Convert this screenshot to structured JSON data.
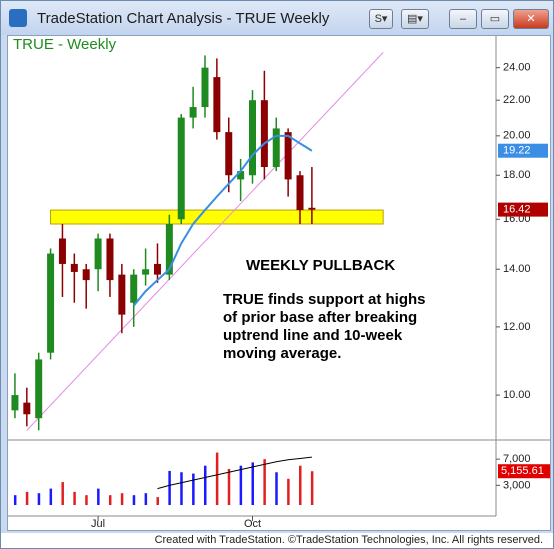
{
  "window": {
    "title": "TradeStation Chart Analysis - TRUE Weekly",
    "status": "Created with TradeStation. ©TradeStation Technologies, Inc. All rights reserved."
  },
  "chart_data": {
    "type": "candlestick",
    "title": "TRUE - Weekly",
    "categories": [
      null,
      null,
      null,
      null,
      null,
      null,
      null,
      "Jul",
      null,
      null,
      null,
      null,
      null,
      null,
      null,
      null,
      null,
      null,
      null,
      null,
      "Oct",
      null,
      null,
      null,
      null,
      null
    ],
    "open": [
      9.6,
      9.8,
      9.4,
      11.2,
      15.2,
      14.2,
      14.0,
      14.0,
      15.2,
      13.8,
      12.8,
      13.8,
      14.2,
      13.8,
      16.0,
      21.0,
      21.6,
      23.4,
      20.2,
      17.8,
      18.0,
      22.0,
      18.4,
      20.2,
      18.0,
      16.5
    ],
    "high": [
      10.6,
      10.2,
      11.2,
      14.8,
      15.8,
      14.6,
      14.2,
      15.4,
      15.4,
      14.2,
      14.0,
      14.8,
      15.0,
      16.2,
      21.2,
      22.8,
      24.8,
      24.6,
      21.0,
      18.8,
      22.6,
      23.8,
      21.0,
      20.4,
      18.2,
      18.4
    ],
    "low": [
      9.4,
      9.2,
      9.1,
      11.0,
      13.0,
      12.8,
      12.6,
      13.2,
      13.0,
      11.8,
      12.0,
      13.4,
      13.5,
      13.6,
      15.8,
      20.4,
      21.0,
      19.8,
      17.2,
      16.8,
      17.6,
      17.8,
      18.2,
      17.0,
      15.8,
      15.8
    ],
    "close": [
      10.0,
      9.5,
      11.0,
      14.6,
      14.2,
      13.9,
      13.6,
      15.2,
      13.6,
      12.4,
      13.8,
      14.0,
      13.8,
      15.8,
      21.0,
      21.6,
      24.0,
      20.2,
      18.0,
      18.2,
      22.0,
      18.4,
      20.4,
      17.8,
      16.4,
      16.42
    ],
    "up_color": "#1f8a1f",
    "down_color": "#8b0000",
    "ylim": [
      9.06,
      26.4
    ],
    "log_scale": true,
    "yticks": [
      {
        "value": 10,
        "label": "10.00"
      },
      {
        "value": 12,
        "label": "12.00"
      },
      {
        "value": 14,
        "label": "14.00"
      },
      {
        "value": 16,
        "label": "16.00"
      },
      {
        "value": 18,
        "label": "18.00"
      },
      {
        "value": 20,
        "label": "20.00"
      },
      {
        "value": 22,
        "label": "22.00"
      },
      {
        "value": 24,
        "label": "24.00"
      }
    ],
    "xlim": [
      -0.5,
      40.5
    ],
    "moving_average": {
      "name": "10-week",
      "color": "#3a8ee6",
      "start": 10,
      "values": [
        12.7,
        13.2,
        13.6,
        14.0,
        15.0,
        15.8,
        16.4,
        17.0,
        17.6,
        18.2,
        19.0,
        19.6,
        20.0,
        20.0,
        19.6,
        19.22
      ]
    },
    "trendline": {
      "color": "#e48ae4",
      "x": [
        1,
        31
      ],
      "values": [
        9.1,
        25.0
      ]
    },
    "support_zone": {
      "color": "#ffff00",
      "x": [
        3,
        31
      ],
      "low": 15.8,
      "high": 16.4
    },
    "price_tag": {
      "value": 16.42,
      "label": "16.42",
      "color": "#b00000"
    },
    "ma_tag": {
      "value": 19.22,
      "label": "19.22",
      "color": "#3a8ee6"
    },
    "annotation_heading": "WEEKLY PULLBACK",
    "annotation": [
      "TRUE finds support at highs",
      "of prior base after breaking",
      "uptrend line and 10-week",
      "moving average."
    ],
    "volume": {
      "values": [
        1500,
        2000,
        1800,
        2500,
        3500,
        2000,
        1500,
        2500,
        1500,
        1800,
        1500,
        1800,
        1200,
        5200,
        5000,
        4800,
        6000,
        8000,
        5500,
        6000,
        6500,
        7000,
        5000,
        4000,
        6000,
        5155.61
      ],
      "up_color": "#1a1aff",
      "down_color": "#e02020",
      "ylim": [
        0,
        8700
      ],
      "yticks": [
        {
          "value": 3000,
          "label": "3,000"
        },
        {
          "value": 7000,
          "label": "7,000"
        }
      ],
      "average": {
        "color": "#000000",
        "start": 12,
        "values": [
          2500,
          3000,
          3400,
          3800,
          4200,
          4600,
          5000,
          5400,
          5800,
          6200,
          6600,
          6900,
          7100,
          7300
        ]
      },
      "tag": {
        "value": 5155.61,
        "label": "5,155.61",
        "color": "#e00000"
      }
    }
  }
}
